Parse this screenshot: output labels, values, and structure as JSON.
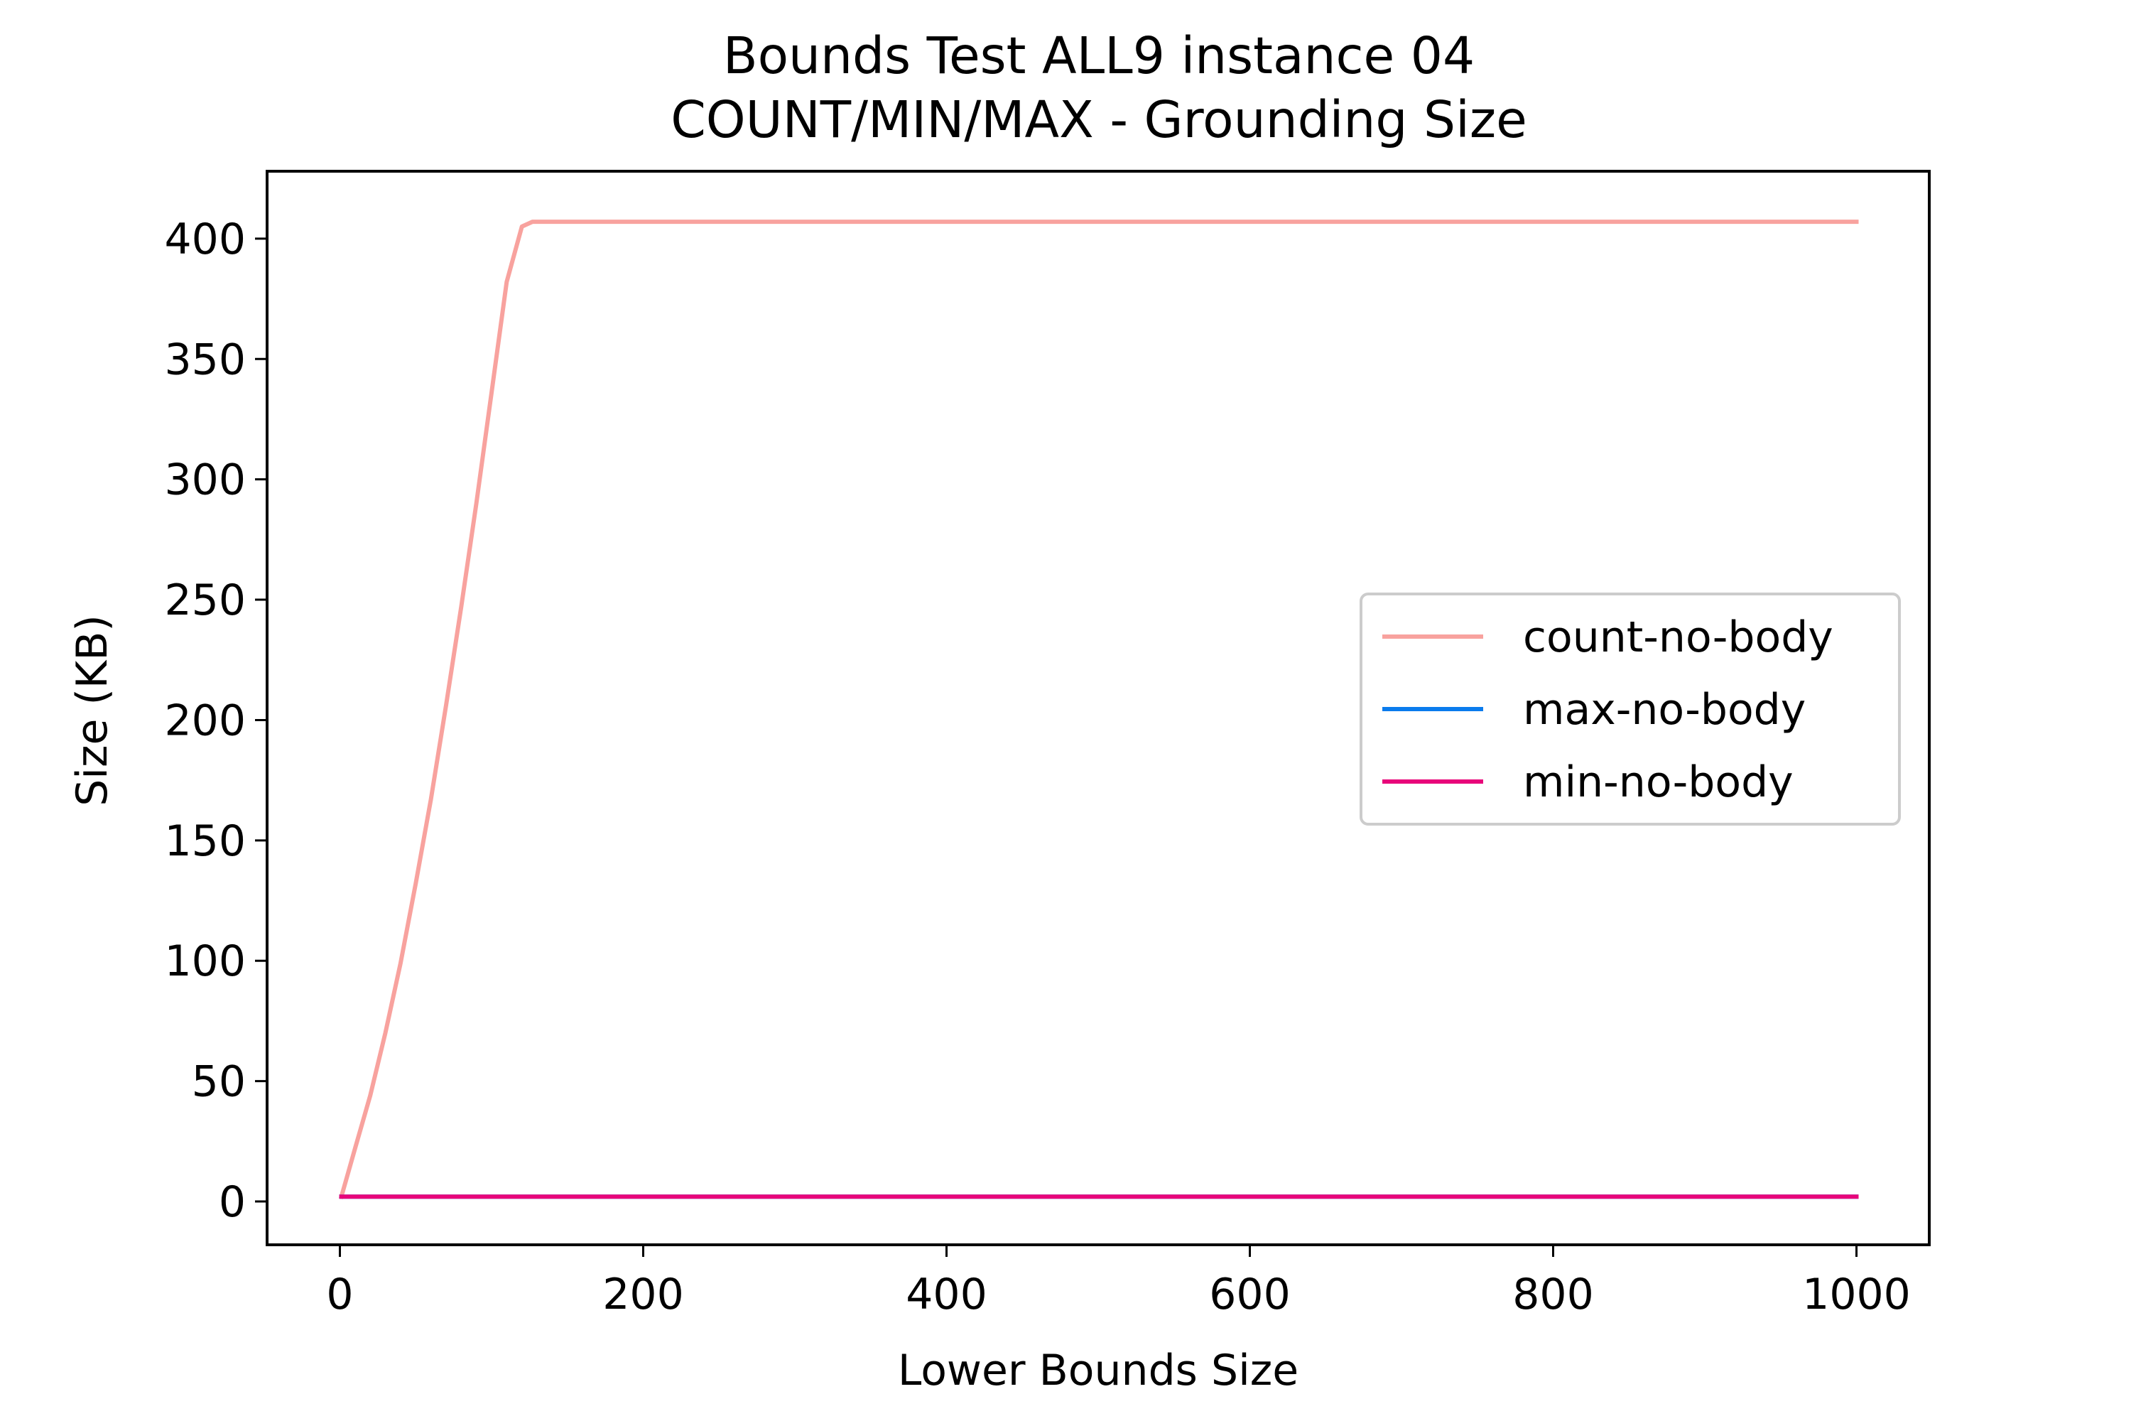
{
  "chart_data": {
    "type": "line",
    "title": "Bounds Test ALL9 instance 04",
    "subtitle": "COUNT/MIN/MAX - Grounding Size",
    "xlabel": "Lower Bounds Size",
    "ylabel": "Size (KB)",
    "xlim": [
      -48,
      1048
    ],
    "ylim": [
      -18,
      428
    ],
    "xticks": [
      0,
      200,
      400,
      600,
      800,
      1000
    ],
    "yticks": [
      0,
      50,
      100,
      150,
      200,
      250,
      300,
      350,
      400
    ],
    "xtick_labels": [
      "0",
      "200",
      "400",
      "600",
      "800",
      "1000"
    ],
    "ytick_labels": [
      "0",
      "50",
      "100",
      "150",
      "200",
      "250",
      "300",
      "350",
      "400"
    ],
    "grid": false,
    "legend_position": "center-right",
    "series": [
      {
        "name": "count-no-body",
        "color": "#f8a29e",
        "x": [
          1,
          10,
          20,
          30,
          40,
          50,
          60,
          70,
          80,
          90,
          100,
          110,
          120,
          127,
          200,
          400,
          600,
          800,
          1000
        ],
        "y": [
          2,
          22,
          44,
          70,
          99,
          132,
          167,
          206,
          247,
          290,
          336,
          382,
          405,
          407,
          407,
          407,
          407,
          407,
          407
        ]
      },
      {
        "name": "max-no-body",
        "color": "#0a7bed",
        "x": [
          1,
          1000
        ],
        "y": [
          2,
          2
        ]
      },
      {
        "name": "min-no-body",
        "color": "#e8057a",
        "x": [
          1,
          1000
        ],
        "y": [
          2,
          2
        ]
      }
    ]
  }
}
